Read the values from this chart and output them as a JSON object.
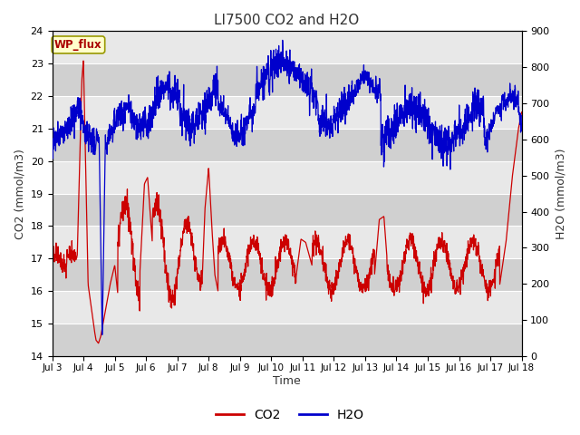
{
  "title": "LI7500 CO2 and H2O",
  "xlabel": "Time",
  "ylabel_left": "CO2 (mmol/m3)",
  "ylabel_right": "H2O (mmol/m3)",
  "ylim_left": [
    14.0,
    24.0
  ],
  "ylim_right": [
    0,
    900
  ],
  "yticks_left": [
    14.0,
    15.0,
    16.0,
    17.0,
    18.0,
    19.0,
    20.0,
    21.0,
    22.0,
    23.0,
    24.0
  ],
  "yticks_right": [
    0,
    100,
    200,
    300,
    400,
    500,
    600,
    700,
    800,
    900
  ],
  "xtick_labels": [
    "Jul 3",
    "Jul 4",
    "Jul 5",
    "Jul 6",
    "Jul 7",
    "Jul 8",
    "Jul 9",
    "Jul 10",
    "Jul 11",
    "Jul 12",
    "Jul 13",
    "Jul 14",
    "Jul 15",
    "Jul 16",
    "Jul 17",
    "Jul 18"
  ],
  "co2_color": "#cc0000",
  "h2o_color": "#0000cc",
  "bg_color_light": "#e8e8e8",
  "bg_color_dark": "#d0d0d0",
  "legend_label_co2": "CO2",
  "legend_label_h2o": "H2O",
  "wp_flux_label": "WP_flux",
  "wp_flux_text_color": "#aa0000",
  "wp_flux_bg_color": "#ffffcc",
  "wp_flux_border_color": "#999900"
}
